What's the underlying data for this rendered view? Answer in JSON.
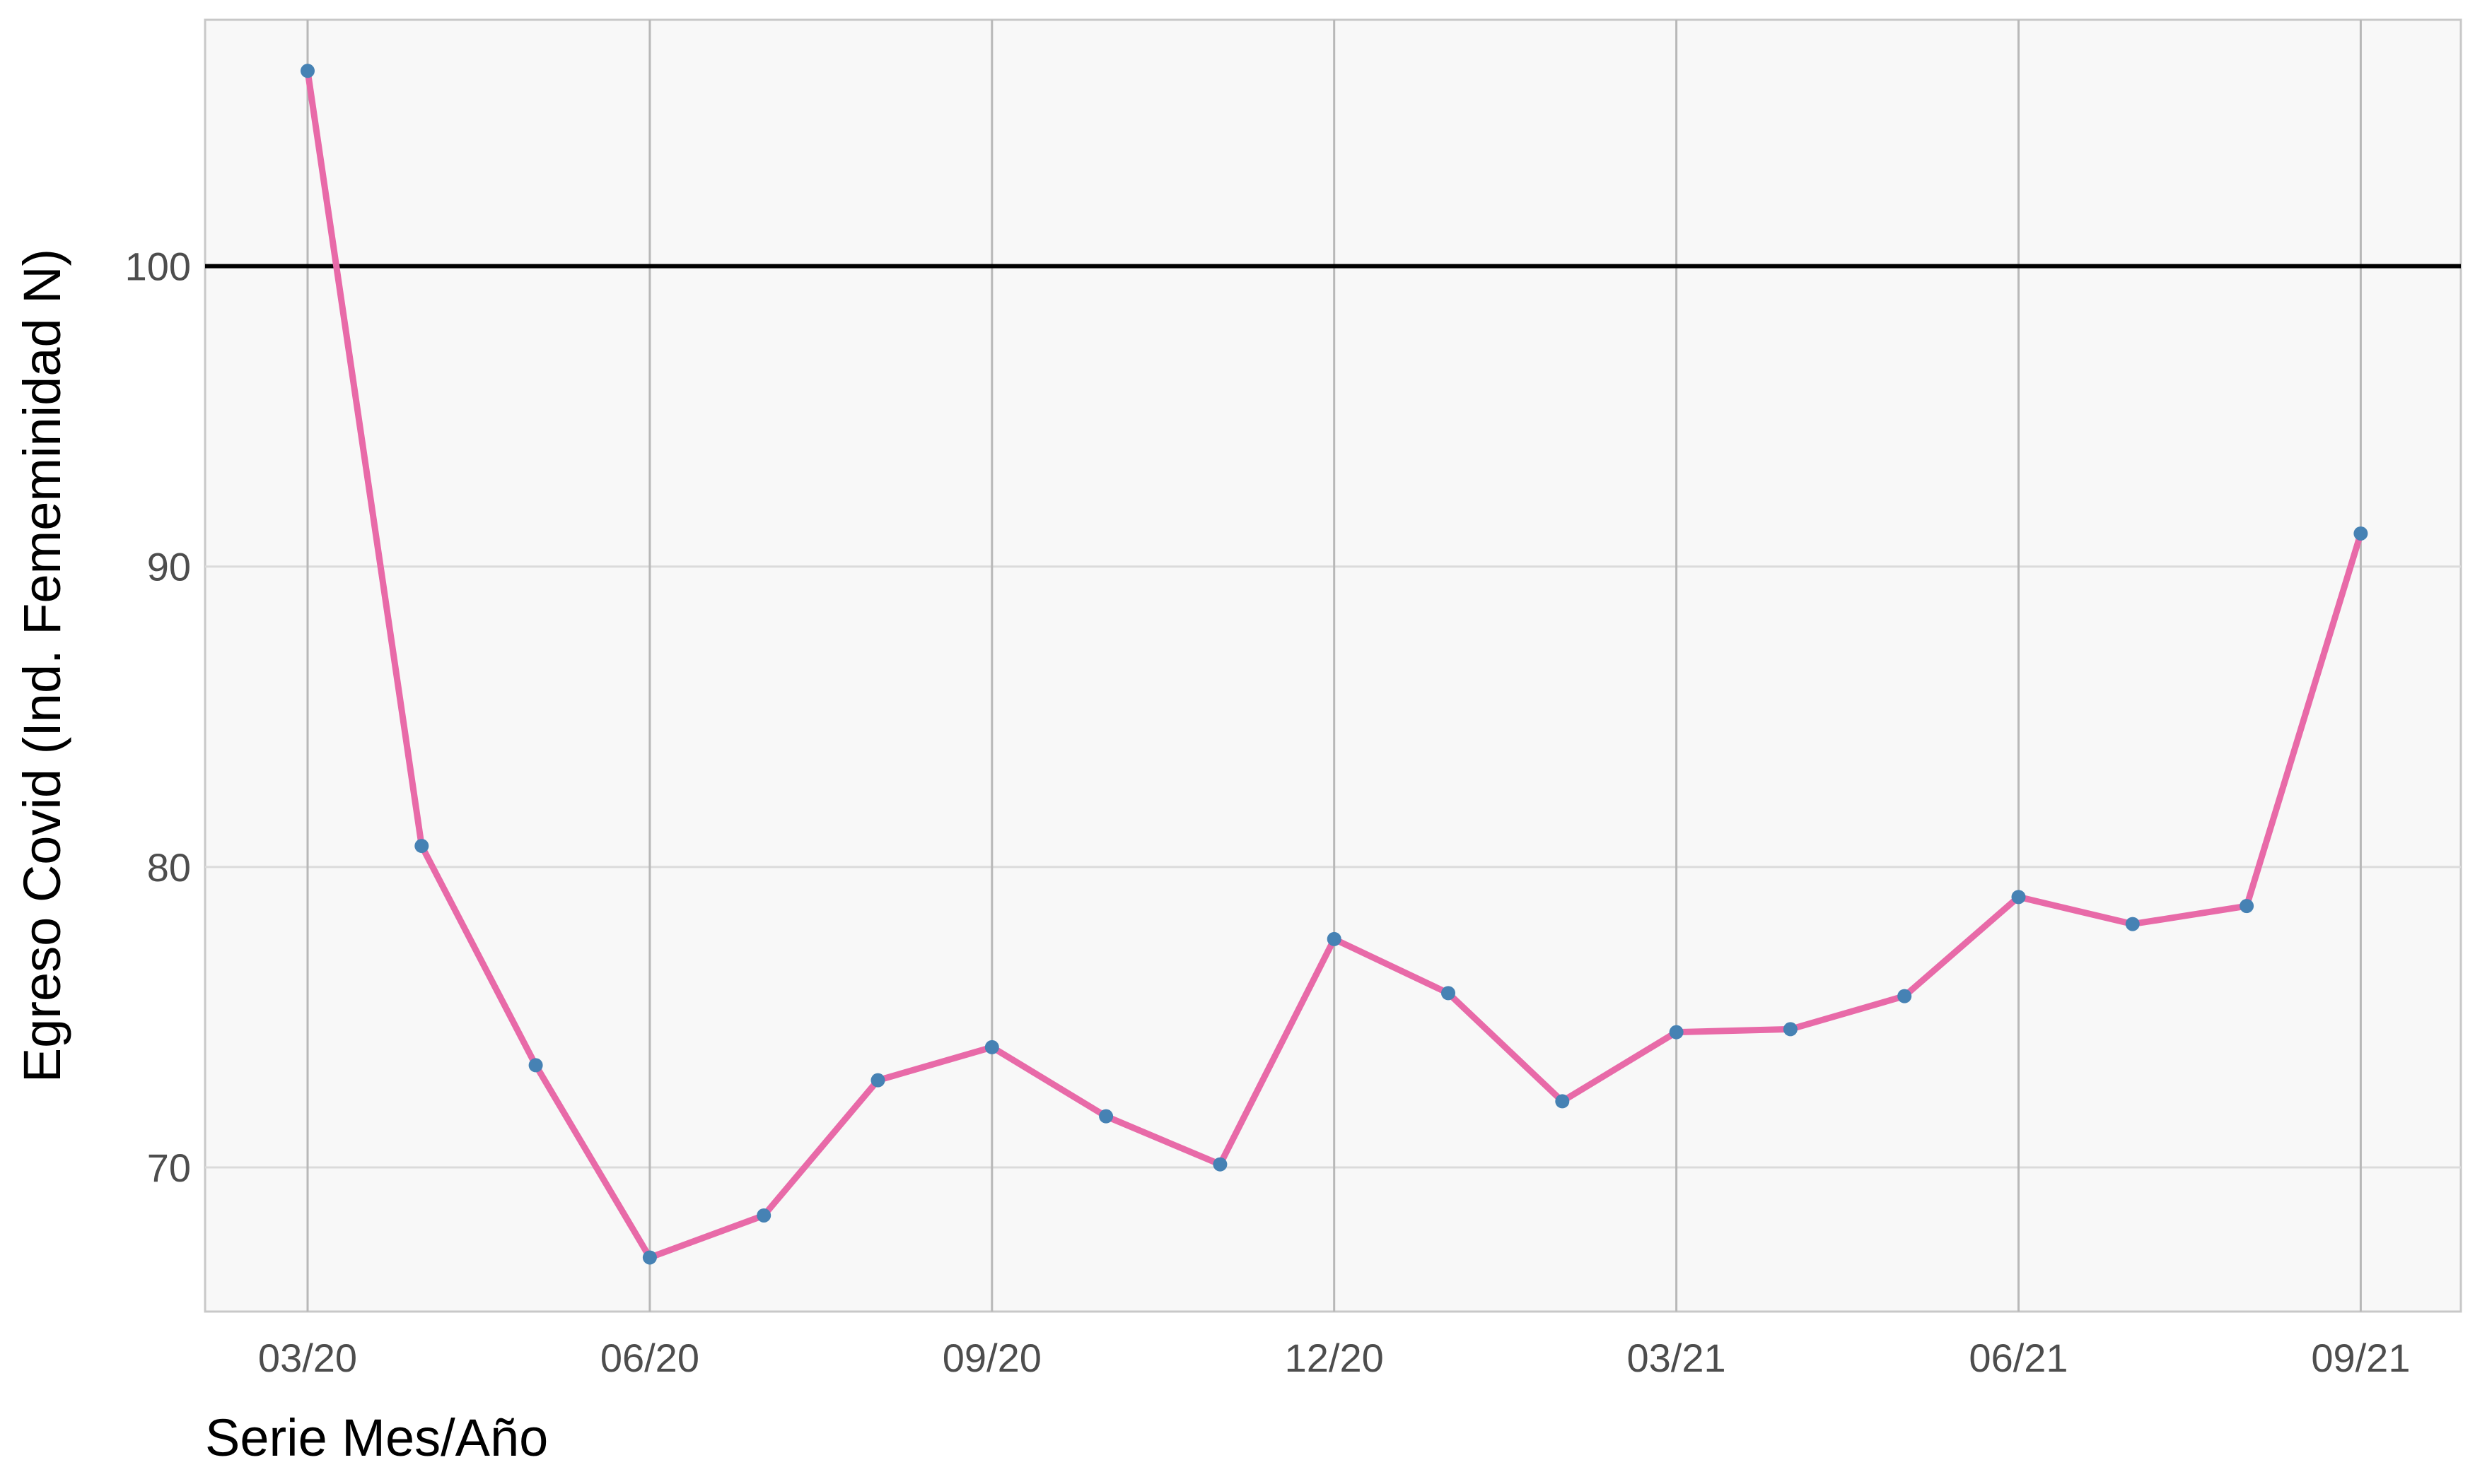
{
  "chart_data": {
    "type": "line",
    "xlabel": "Serie Mes/Año",
    "ylabel": "Egreso Covid (Ind. Fememinidad N)",
    "x": [
      "03/20",
      "04/20",
      "05/20",
      "06/20",
      "07/20",
      "08/20",
      "09/20",
      "10/20",
      "11/20",
      "12/20",
      "01/21",
      "02/21",
      "03/21",
      "04/21",
      "05/21",
      "06/21",
      "07/21",
      "08/21",
      "09/21"
    ],
    "x_tick_labels": [
      "03/20",
      "06/20",
      "09/20",
      "12/20",
      "03/21",
      "06/21",
      "09/21"
    ],
    "y_ticks": [
      70,
      80,
      90,
      100
    ],
    "ylim": [
      65.2,
      108.2
    ],
    "series": [
      {
        "values": [
          106.5,
          80.7,
          73.4,
          67.0,
          68.4,
          72.9,
          74.0,
          71.7,
          70.1,
          77.6,
          75.8,
          72.2,
          74.5,
          74.6,
          75.7,
          79.0,
          78.1,
          78.7,
          91.1
        ]
      }
    ],
    "reference_line": 100,
    "grid": true,
    "colors": {
      "line": "#E86AA8",
      "points": "#4682B4",
      "reference": "#000000",
      "panel": "#F8F8F8",
      "grid": "#DBDBDB",
      "vgrid": "#B8B8B8"
    }
  }
}
